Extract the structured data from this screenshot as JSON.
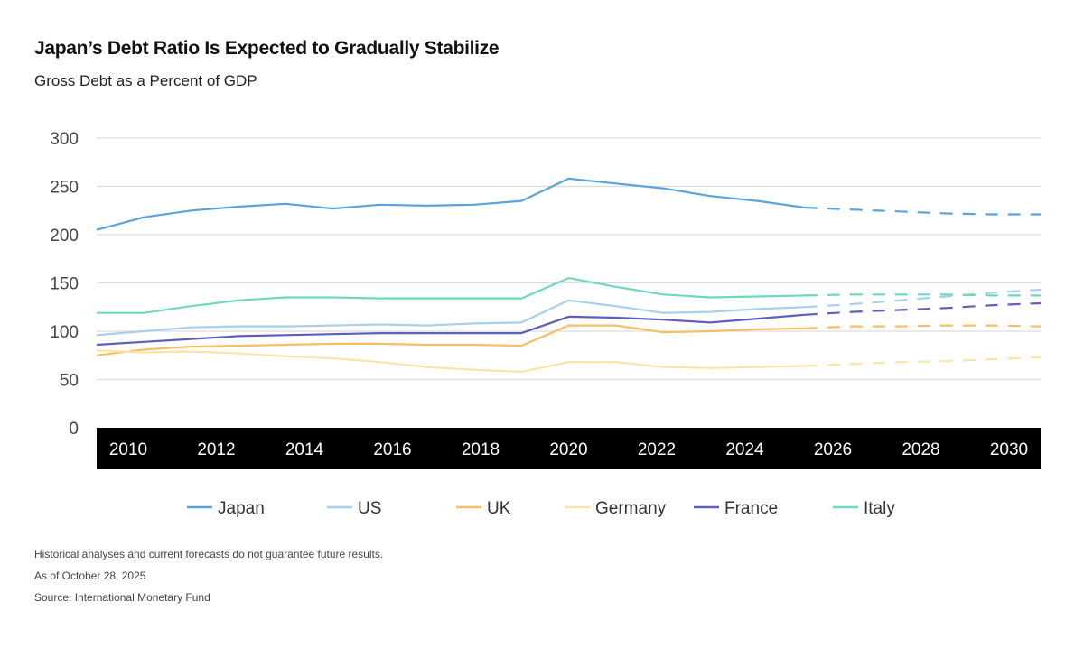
{
  "chart_data": {
    "type": "line",
    "title": "Japan’s Debt Ratio Is Expected to Gradually Stabilize",
    "subtitle": "Gross Debt as a Percent of GDP",
    "xlabel": "",
    "ylabel": "",
    "x": [
      2010,
      2011,
      2012,
      2013,
      2014,
      2015,
      2016,
      2017,
      2018,
      2019,
      2020,
      2021,
      2022,
      2023,
      2024,
      2025,
      2026,
      2027,
      2028,
      2029,
      2030
    ],
    "x_tick_labels": [
      "2010",
      "2012",
      "2014",
      "2016",
      "2018",
      "2020",
      "2022",
      "2024",
      "2026",
      "2028",
      "2030"
    ],
    "y_tick_labels": [
      "0",
      "50",
      "100",
      "150",
      "200",
      "250",
      "300"
    ],
    "ylim": [
      0,
      300
    ],
    "grid": "horizontal",
    "legend_position": "bottom",
    "forecast_dashed_from": 2025,
    "series": [
      {
        "name": "Japan",
        "color": "#5aa3dc",
        "values": [
          205,
          218,
          225,
          229,
          232,
          227,
          231,
          230,
          231,
          235,
          258,
          253,
          248,
          240,
          235,
          228,
          226,
          224,
          222,
          221,
          221
        ]
      },
      {
        "name": "US",
        "color": "#a8cfee",
        "values": [
          96,
          100,
          104,
          105,
          105,
          106,
          107,
          106,
          108,
          109,
          132,
          126,
          119,
          120,
          123,
          125,
          128,
          132,
          136,
          140,
          143
        ]
      },
      {
        "name": "UK",
        "color": "#f7be63",
        "values": [
          75,
          81,
          84,
          85,
          86,
          87,
          87,
          86,
          86,
          85,
          106,
          106,
          99,
          100,
          102,
          103,
          105,
          105,
          106,
          106,
          105
        ]
      },
      {
        "name": "Germany",
        "color": "#fde3a7",
        "values": [
          80,
          78,
          79,
          77,
          74,
          72,
          68,
          63,
          60,
          58,
          68,
          68,
          63,
          62,
          63,
          64,
          66,
          68,
          69,
          71,
          73
        ]
      },
      {
        "name": "France",
        "color": "#5c5fbd",
        "values": [
          86,
          89,
          92,
          95,
          96,
          97,
          98,
          98,
          98,
          98,
          115,
          114,
          112,
          109,
          113,
          117,
          120,
          122,
          124,
          127,
          129
        ]
      },
      {
        "name": "Italy",
        "color": "#6dd8c2",
        "values": [
          119,
          119,
          126,
          132,
          135,
          135,
          134,
          134,
          134,
          134,
          155,
          146,
          138,
          135,
          136,
          137,
          138,
          138,
          138,
          137,
          137
        ]
      }
    ]
  },
  "footer": {
    "disclaimer": "Historical analyses and current forecasts do not guarantee future results.",
    "as_of": "As of October 28, 2025",
    "source": "Source: International Monetary Fund"
  }
}
